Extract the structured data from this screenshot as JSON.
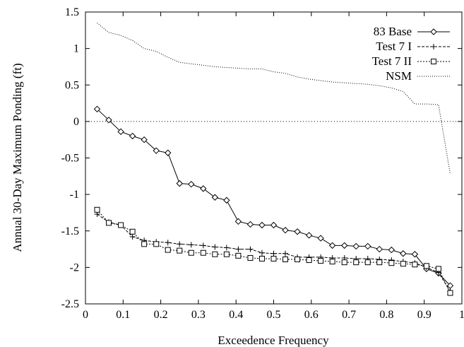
{
  "chart_data": {
    "type": "line",
    "xlabel": "Exceedence Frequency",
    "ylabel": "Annual 30-Day Maximum Ponding (ft)",
    "xlim": [
      0,
      1
    ],
    "ylim": [
      -2.5,
      1.5
    ],
    "xticks": [
      "0",
      "0.1",
      "0.2",
      "0.3",
      "0.4",
      "0.5",
      "0.6",
      "0.7",
      "0.8",
      "0.9",
      "1"
    ],
    "yticks": [
      "1.5",
      "1",
      "0.5",
      "0",
      "-0.5",
      "-1",
      "-1.5",
      "-2",
      "-2.5"
    ],
    "grid": false,
    "legend_position": "top-right",
    "reference_line": 0,
    "series": [
      {
        "name": "83 Base",
        "style": "solid",
        "marker": "diamond",
        "x": [
          0.031,
          0.062,
          0.094,
          0.125,
          0.156,
          0.188,
          0.219,
          0.25,
          0.281,
          0.313,
          0.344,
          0.375,
          0.406,
          0.438,
          0.469,
          0.5,
          0.531,
          0.563,
          0.594,
          0.625,
          0.656,
          0.688,
          0.719,
          0.75,
          0.781,
          0.813,
          0.844,
          0.875,
          0.906,
          0.938,
          0.969
        ],
        "y": [
          0.17,
          0.02,
          -0.14,
          -0.2,
          -0.25,
          -0.4,
          -0.43,
          -0.85,
          -0.86,
          -0.92,
          -1.04,
          -1.08,
          -1.37,
          -1.41,
          -1.42,
          -1.42,
          -1.49,
          -1.51,
          -1.56,
          -1.6,
          -1.7,
          -1.7,
          -1.71,
          -1.71,
          -1.75,
          -1.76,
          -1.81,
          -1.82,
          -2.02,
          -2.08,
          -2.25
        ]
      },
      {
        "name": "Test 7 I",
        "style": "dashed",
        "marker": "plus",
        "x": [
          0.031,
          0.062,
          0.094,
          0.125,
          0.156,
          0.188,
          0.219,
          0.25,
          0.281,
          0.313,
          0.344,
          0.375,
          0.406,
          0.438,
          0.469,
          0.5,
          0.531,
          0.563,
          0.594,
          0.625,
          0.656,
          0.688,
          0.719,
          0.75,
          0.781,
          0.813,
          0.844,
          0.875,
          0.906,
          0.938,
          0.969
        ],
        "y": [
          -1.27,
          -1.38,
          -1.42,
          -1.58,
          -1.63,
          -1.65,
          -1.66,
          -1.68,
          -1.69,
          -1.7,
          -1.72,
          -1.73,
          -1.75,
          -1.75,
          -1.8,
          -1.81,
          -1.81,
          -1.86,
          -1.86,
          -1.86,
          -1.87,
          -1.87,
          -1.88,
          -1.88,
          -1.89,
          -1.9,
          -1.92,
          -1.94,
          -2.0,
          -2.07,
          -2.33
        ]
      },
      {
        "name": "Test 7 II",
        "style": "dotted",
        "marker": "square",
        "x": [
          0.031,
          0.062,
          0.094,
          0.125,
          0.156,
          0.188,
          0.219,
          0.25,
          0.281,
          0.313,
          0.344,
          0.375,
          0.406,
          0.438,
          0.469,
          0.5,
          0.531,
          0.563,
          0.594,
          0.625,
          0.656,
          0.688,
          0.719,
          0.75,
          0.781,
          0.813,
          0.844,
          0.875,
          0.906,
          0.938,
          0.969
        ],
        "y": [
          -1.21,
          -1.39,
          -1.42,
          -1.51,
          -1.68,
          -1.68,
          -1.76,
          -1.77,
          -1.8,
          -1.8,
          -1.82,
          -1.82,
          -1.84,
          -1.87,
          -1.88,
          -1.88,
          -1.89,
          -1.89,
          -1.9,
          -1.91,
          -1.92,
          -1.93,
          -1.93,
          -1.93,
          -1.93,
          -1.94,
          -1.95,
          -1.96,
          -1.98,
          -2.02,
          -2.35
        ]
      },
      {
        "name": "NSM",
        "style": "fine-dotted",
        "marker": "none",
        "x": [
          0.031,
          0.062,
          0.094,
          0.125,
          0.156,
          0.188,
          0.219,
          0.25,
          0.281,
          0.313,
          0.344,
          0.375,
          0.406,
          0.438,
          0.469,
          0.5,
          0.531,
          0.563,
          0.594,
          0.625,
          0.656,
          0.688,
          0.719,
          0.75,
          0.781,
          0.813,
          0.844,
          0.875,
          0.906,
          0.938,
          0.969
        ],
        "y": [
          1.35,
          1.22,
          1.18,
          1.11,
          1.0,
          0.96,
          0.88,
          0.81,
          0.79,
          0.77,
          0.75,
          0.74,
          0.73,
          0.72,
          0.72,
          0.68,
          0.66,
          0.61,
          0.58,
          0.56,
          0.54,
          0.53,
          0.52,
          0.51,
          0.49,
          0.46,
          0.41,
          0.24,
          0.24,
          0.23,
          -0.72
        ]
      }
    ]
  }
}
